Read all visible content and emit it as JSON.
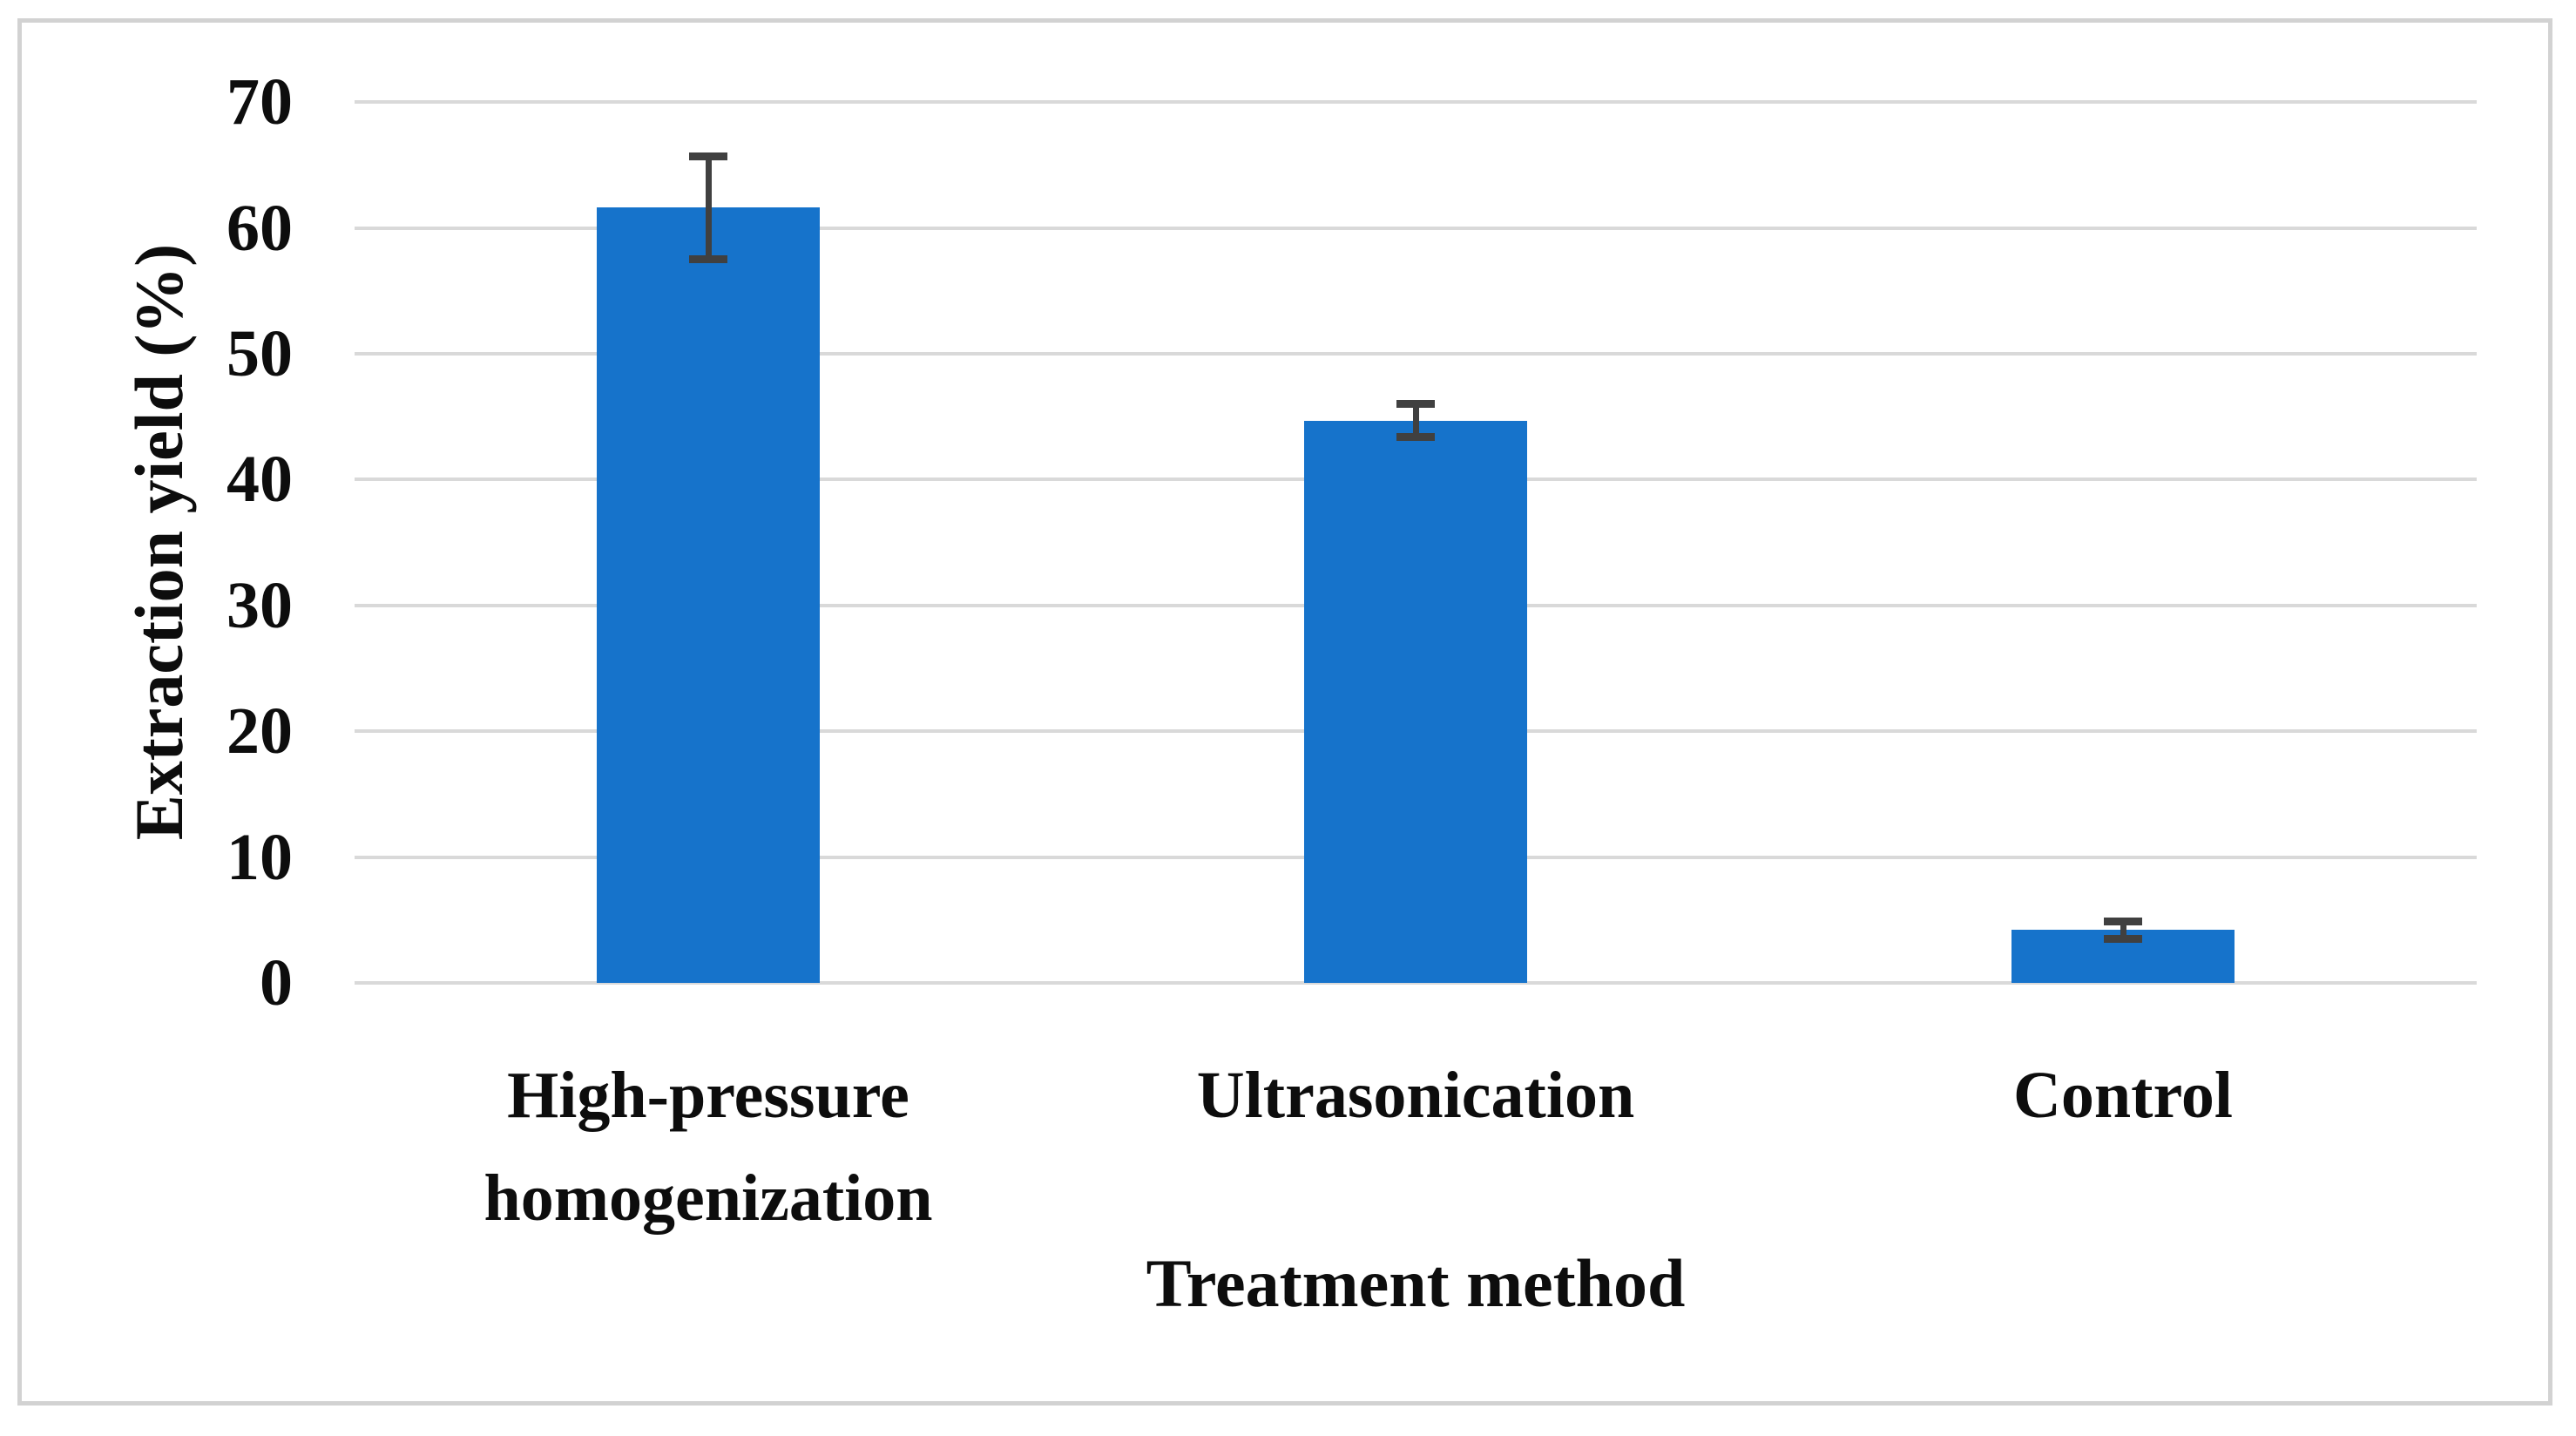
{
  "figure": {
    "background_color": "#FFFFFF",
    "frame_border_color": "#D2D2D2"
  },
  "chart_data": {
    "type": "bar",
    "title": "",
    "xlabel": "Treatment method",
    "ylabel": "Extraction yield (%)",
    "categories": [
      "High-pressure homogenization",
      "Ultrasonication",
      "Control"
    ],
    "values": [
      61.6,
      44.7,
      4.2
    ],
    "error_bars": [
      4.1,
      1.3,
      0.7
    ],
    "yticks": [
      0,
      10,
      20,
      30,
      40,
      50,
      60,
      70
    ],
    "ylim": [
      0,
      70
    ],
    "grid": "horizontal-only",
    "legend": "none",
    "bar_color": "#1673CB",
    "error_bar_color": "#404040",
    "gridline_color": "#D9D9D9",
    "text_color": "#0D0D0D"
  }
}
